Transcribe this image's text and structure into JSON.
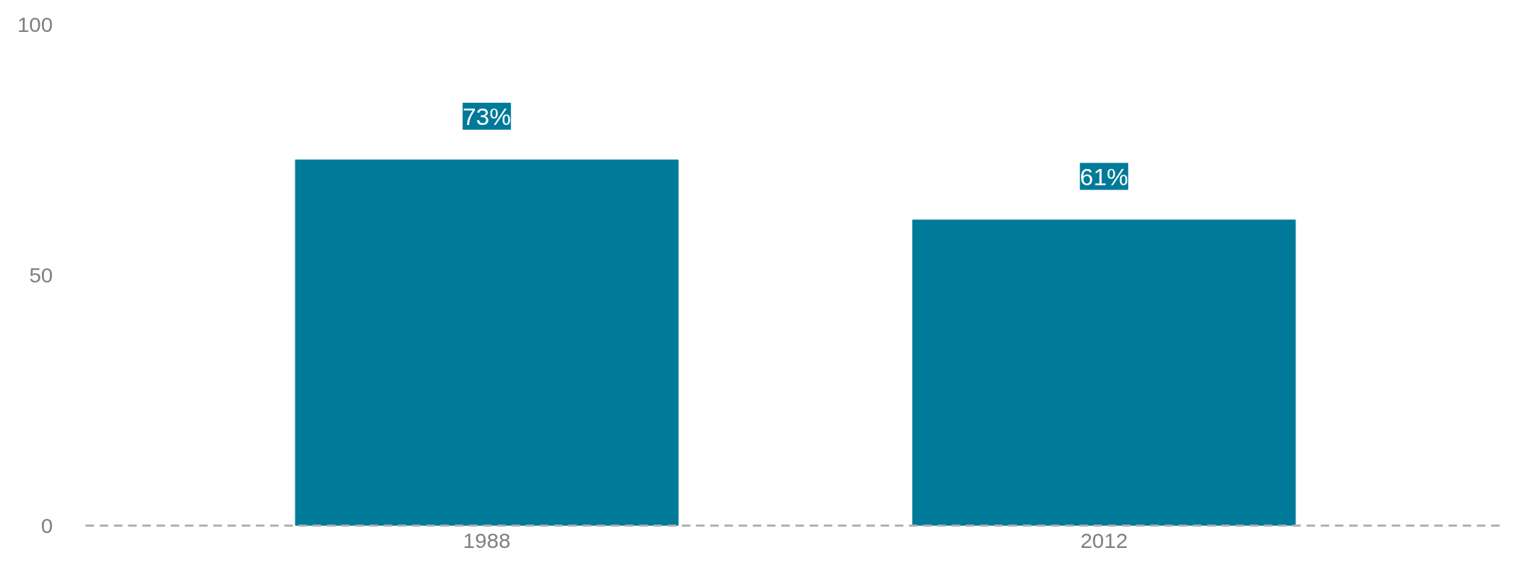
{
  "chart_data": {
    "type": "bar",
    "categories": [
      "1988",
      "2012"
    ],
    "values": [
      73,
      61
    ],
    "value_labels": [
      "73%",
      "61%"
    ],
    "color": "#007a99",
    "ylim": [
      0,
      100
    ],
    "yticks": [
      0,
      50,
      100
    ],
    "grid": false
  }
}
